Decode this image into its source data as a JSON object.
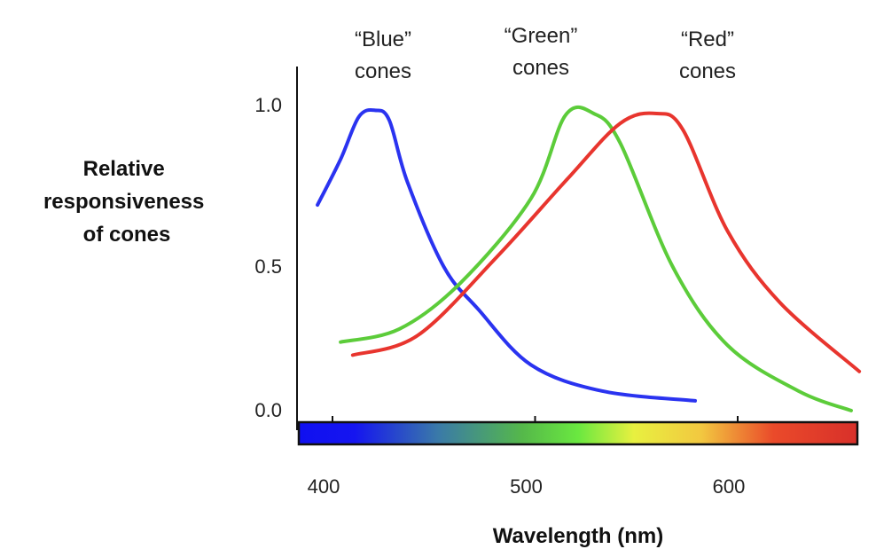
{
  "chart_data": {
    "type": "line",
    "title": "",
    "xlabel": "Wavelength (nm)",
    "ylabel": [
      "Relative",
      "responsiveness",
      "of cones"
    ],
    "xlim": [
      383,
      660
    ],
    "ylim": [
      0,
      1.1
    ],
    "xticks": [
      400,
      500,
      600
    ],
    "xtick_labels": [
      "400",
      "500",
      "600"
    ],
    "yticks": [
      0,
      0.5,
      1.0
    ],
    "ytick_labels": [
      "0.0",
      "0.5",
      "1.0"
    ],
    "grid": false,
    "legend": "none",
    "spectrum_bar": true,
    "series": [
      {
        "name": "“Blue” cones",
        "label_lines": [
          "“Blue”",
          "cones"
        ],
        "color": "#2a33f0",
        "x": [
          392.6,
          404,
          413,
          421,
          428,
          437,
          455,
          472,
          498,
          533,
          579
        ],
        "y": [
          0.69,
          0.83,
          0.96,
          0.98,
          0.95,
          0.76,
          0.5,
          0.37,
          0.2,
          0.12,
          0.09
        ]
      },
      {
        "name": "“Green” cones",
        "label_lines": [
          "“Green”",
          "cones"
        ],
        "color": "#5ccc3a",
        "x": [
          404,
          433,
          463,
          498,
          515,
          529,
          542,
          568,
          595,
          630,
          656
        ],
        "y": [
          0.27,
          0.31,
          0.45,
          0.71,
          0.965,
          0.97,
          0.88,
          0.5,
          0.26,
          0.12,
          0.06
        ]
      },
      {
        "name": "“Red” cones",
        "label_lines": [
          "“Red”",
          "cones"
        ],
        "color": "#e8352e",
        "x": [
          410,
          442,
          481,
          516,
          542,
          560,
          573,
          595,
          621,
          660
        ],
        "y": [
          0.23,
          0.29,
          0.53,
          0.77,
          0.94,
          0.97,
          0.92,
          0.61,
          0.39,
          0.18
        ]
      }
    ]
  }
}
